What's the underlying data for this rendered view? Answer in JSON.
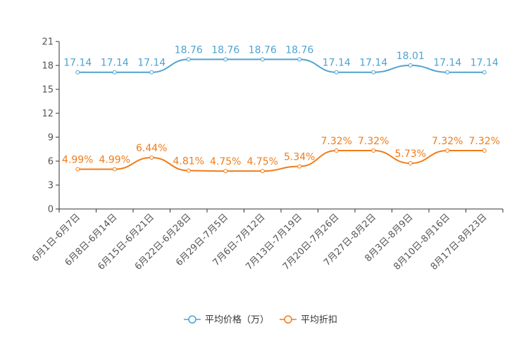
{
  "chart_data": {
    "type": "line",
    "title": "",
    "xlabel": "",
    "ylabel": "",
    "ylim": [
      0,
      21
    ],
    "yticks": [
      0,
      3,
      6,
      9,
      12,
      15,
      18,
      21
    ],
    "categories": [
      "6月1日-6月7日",
      "6月8日-6月14日",
      "6月15日-6月21日",
      "6月22日-6月28日",
      "6月29日-7月5日",
      "7月6日-7月12日",
      "7月13日-7月19日",
      "7月20日-7月26日",
      "7月27日-8月2日",
      "8月3日-8月9日",
      "8月10日-8月16日",
      "8月17日-8月23日"
    ],
    "series": [
      {
        "name": "平均价格（万）",
        "color": "#4ea3d0",
        "values": [
          17.14,
          17.14,
          17.14,
          18.76,
          18.76,
          18.76,
          18.76,
          17.14,
          17.14,
          18.01,
          17.14,
          17.14
        ],
        "labels": [
          "17.14",
          "17.14",
          "17.14",
          "18.76",
          "18.76",
          "18.76",
          "18.76",
          "17.14",
          "17.14",
          "18.01",
          "17.14",
          "17.14"
        ]
      },
      {
        "name": "平均折扣",
        "color": "#f07c1a",
        "values": [
          4.99,
          4.99,
          6.44,
          4.81,
          4.75,
          4.75,
          5.34,
          7.32,
          7.32,
          5.73,
          7.32,
          7.32
        ],
        "labels": [
          "4.99%",
          "4.99%",
          "6.44%",
          "4.81%",
          "4.75%",
          "4.75%",
          "5.34%",
          "7.32%",
          "7.32%",
          "5.73%",
          "7.32%",
          "7.32%"
        ]
      }
    ],
    "legend_position": "bottom-center",
    "grid": false
  }
}
